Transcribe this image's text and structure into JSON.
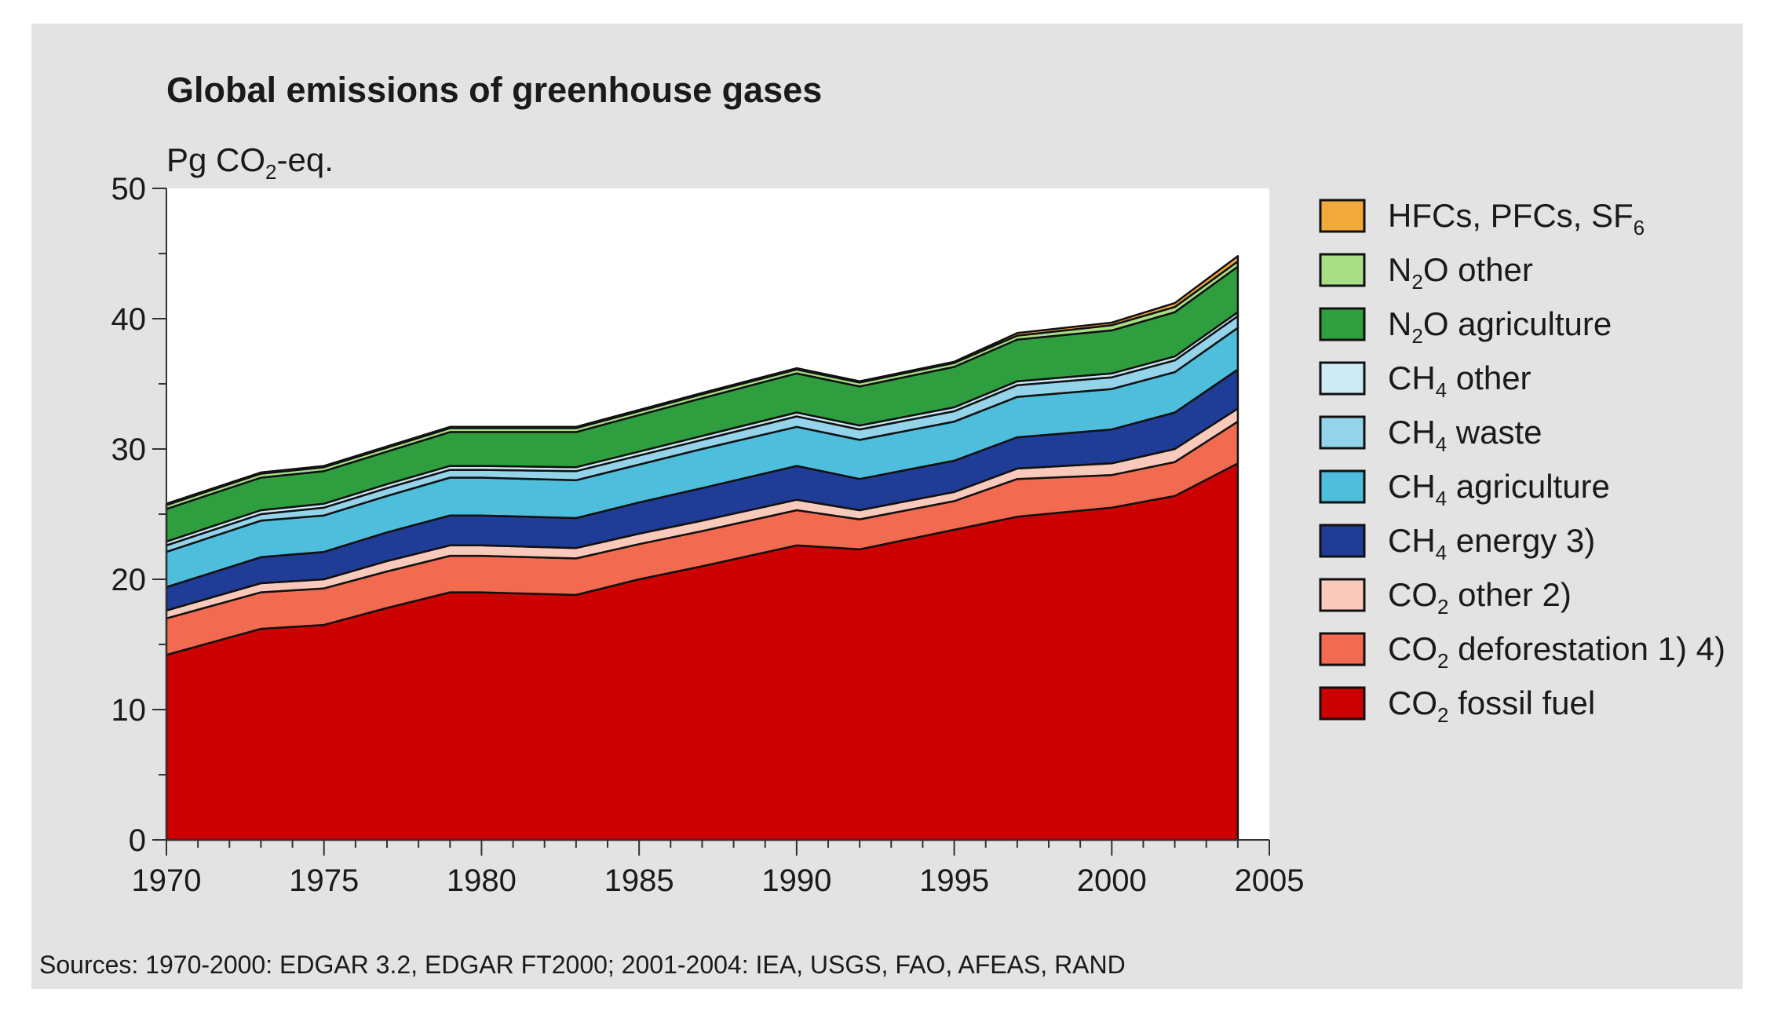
{
  "chart_data": {
    "type": "area",
    "stacked": true,
    "title": "Global emissions of greenhouse gases",
    "ylabel": {
      "main": "Pg CO",
      "sub": "2",
      "rest": "-eq."
    },
    "xlim": [
      1970,
      2005
    ],
    "ylim": [
      0,
      50
    ],
    "x_ticks": [
      1970,
      1975,
      1980,
      1985,
      1990,
      1995,
      2000,
      2005
    ],
    "y_ticks": [
      0,
      10,
      20,
      30,
      40,
      50
    ],
    "y_minor_ticks": [
      5,
      15,
      25,
      35,
      45
    ],
    "x_minor_ticks": [
      1971,
      1972,
      1973,
      1974,
      1976,
      1977,
      1978,
      1979,
      1981,
      1982,
      1983,
      1984,
      1986,
      1987,
      1988,
      1989,
      1991,
      1992,
      1993,
      1994,
      1996,
      1997,
      1998,
      1999,
      2001,
      2002,
      2003,
      2004
    ],
    "x": [
      1970,
      1973,
      1975,
      1977,
      1979,
      1980,
      1983,
      1985,
      1987,
      1990,
      1992,
      1995,
      1997,
      2000,
      2002,
      2004
    ],
    "series": [
      {
        "name": "CO2 fossil fuel",
        "label_main": "CO",
        "label_sub": "2",
        "label_rest": " fossil fuel",
        "color": "#cc0000",
        "values": [
          14.2,
          16.2,
          16.5,
          17.8,
          19.0,
          19.0,
          18.8,
          20.0,
          21.0,
          22.6,
          22.3,
          23.8,
          24.8,
          25.5,
          26.4,
          28.9
        ]
      },
      {
        "name": "CO2 deforestation",
        "label_main": "CO",
        "label_sub": "2",
        "label_rest": " deforestation 1) 4)",
        "color": "#f26b50",
        "values": [
          2.8,
          2.8,
          2.8,
          2.8,
          2.8,
          2.8,
          2.8,
          2.7,
          2.7,
          2.7,
          2.3,
          2.2,
          2.9,
          2.5,
          2.6,
          3.2
        ]
      },
      {
        "name": "CO2 other",
        "label_main": "CO",
        "label_sub": "2",
        "label_rest": " other 2)",
        "color": "#f9c9bc",
        "values": [
          0.6,
          0.7,
          0.7,
          0.8,
          0.8,
          0.8,
          0.8,
          0.8,
          0.8,
          0.8,
          0.7,
          0.7,
          0.8,
          0.9,
          1.0,
          1.0
        ]
      },
      {
        "name": "CH4 energy",
        "label_main": "CH",
        "label_sub": "4",
        "label_rest": " energy 3)",
        "color": "#1f3c96",
        "values": [
          1.8,
          2.0,
          2.1,
          2.2,
          2.3,
          2.3,
          2.3,
          2.4,
          2.5,
          2.6,
          2.4,
          2.4,
          2.4,
          2.6,
          2.8,
          3.0
        ]
      },
      {
        "name": "CH4 agriculture",
        "label_main": "CH",
        "label_sub": "4",
        "label_rest": " agriculture",
        "color": "#4fbedc",
        "values": [
          2.7,
          2.8,
          2.8,
          2.8,
          2.9,
          2.9,
          2.9,
          2.9,
          3.0,
          3.0,
          3.0,
          3.0,
          3.1,
          3.1,
          3.1,
          3.2
        ]
      },
      {
        "name": "CH4 waste",
        "label_main": "CH",
        "label_sub": "4",
        "label_rest": " waste",
        "color": "#93d4ea",
        "values": [
          0.5,
          0.5,
          0.6,
          0.6,
          0.6,
          0.6,
          0.7,
          0.7,
          0.7,
          0.8,
          0.8,
          0.8,
          0.9,
          0.9,
          0.9,
          0.9
        ]
      },
      {
        "name": "CH4 other",
        "label_main": "CH",
        "label_sub": "4",
        "label_rest": " other",
        "color": "#cdebf5",
        "values": [
          0.3,
          0.3,
          0.3,
          0.3,
          0.3,
          0.3,
          0.3,
          0.3,
          0.3,
          0.3,
          0.3,
          0.3,
          0.3,
          0.3,
          0.3,
          0.3
        ]
      },
      {
        "name": "N2O agriculture",
        "label_main": "N",
        "label_sub": "2",
        "label_rest": "O agriculture",
        "color": "#2e9e3e",
        "values": [
          2.5,
          2.5,
          2.5,
          2.5,
          2.6,
          2.6,
          2.7,
          2.8,
          2.9,
          3.0,
          3.0,
          3.1,
          3.2,
          3.3,
          3.4,
          3.5
        ]
      },
      {
        "name": "N2O other",
        "label_main": "N",
        "label_sub": "2",
        "label_rest": "O other",
        "color": "#a8df86",
        "values": [
          0.3,
          0.3,
          0.3,
          0.3,
          0.3,
          0.3,
          0.3,
          0.3,
          0.3,
          0.3,
          0.3,
          0.3,
          0.3,
          0.4,
          0.4,
          0.4
        ]
      },
      {
        "name": "HFCs, PFCs, SF6",
        "label_main": "HFCs, PFCs, SF",
        "label_sub": "6",
        "label_rest": "",
        "color": "#f2a93b",
        "values": [
          0.1,
          0.1,
          0.1,
          0.1,
          0.1,
          0.1,
          0.1,
          0.1,
          0.1,
          0.1,
          0.1,
          0.1,
          0.2,
          0.2,
          0.3,
          0.4
        ]
      }
    ],
    "legend_order": [
      "HFCs, PFCs, SF6",
      "N2O other",
      "N2O agriculture",
      "CH4 other",
      "CH4 waste",
      "CH4 agriculture",
      "CH4 energy",
      "CO2 other",
      "CO2 deforestation",
      "CO2 fossil fuel"
    ],
    "legend_position": "right",
    "grid": false
  },
  "source_text": "Sources:  1970-2000: EDGAR 3.2, EDGAR FT2000;  2001-2004: IEA, USGS, FAO, AFEAS, RAND"
}
